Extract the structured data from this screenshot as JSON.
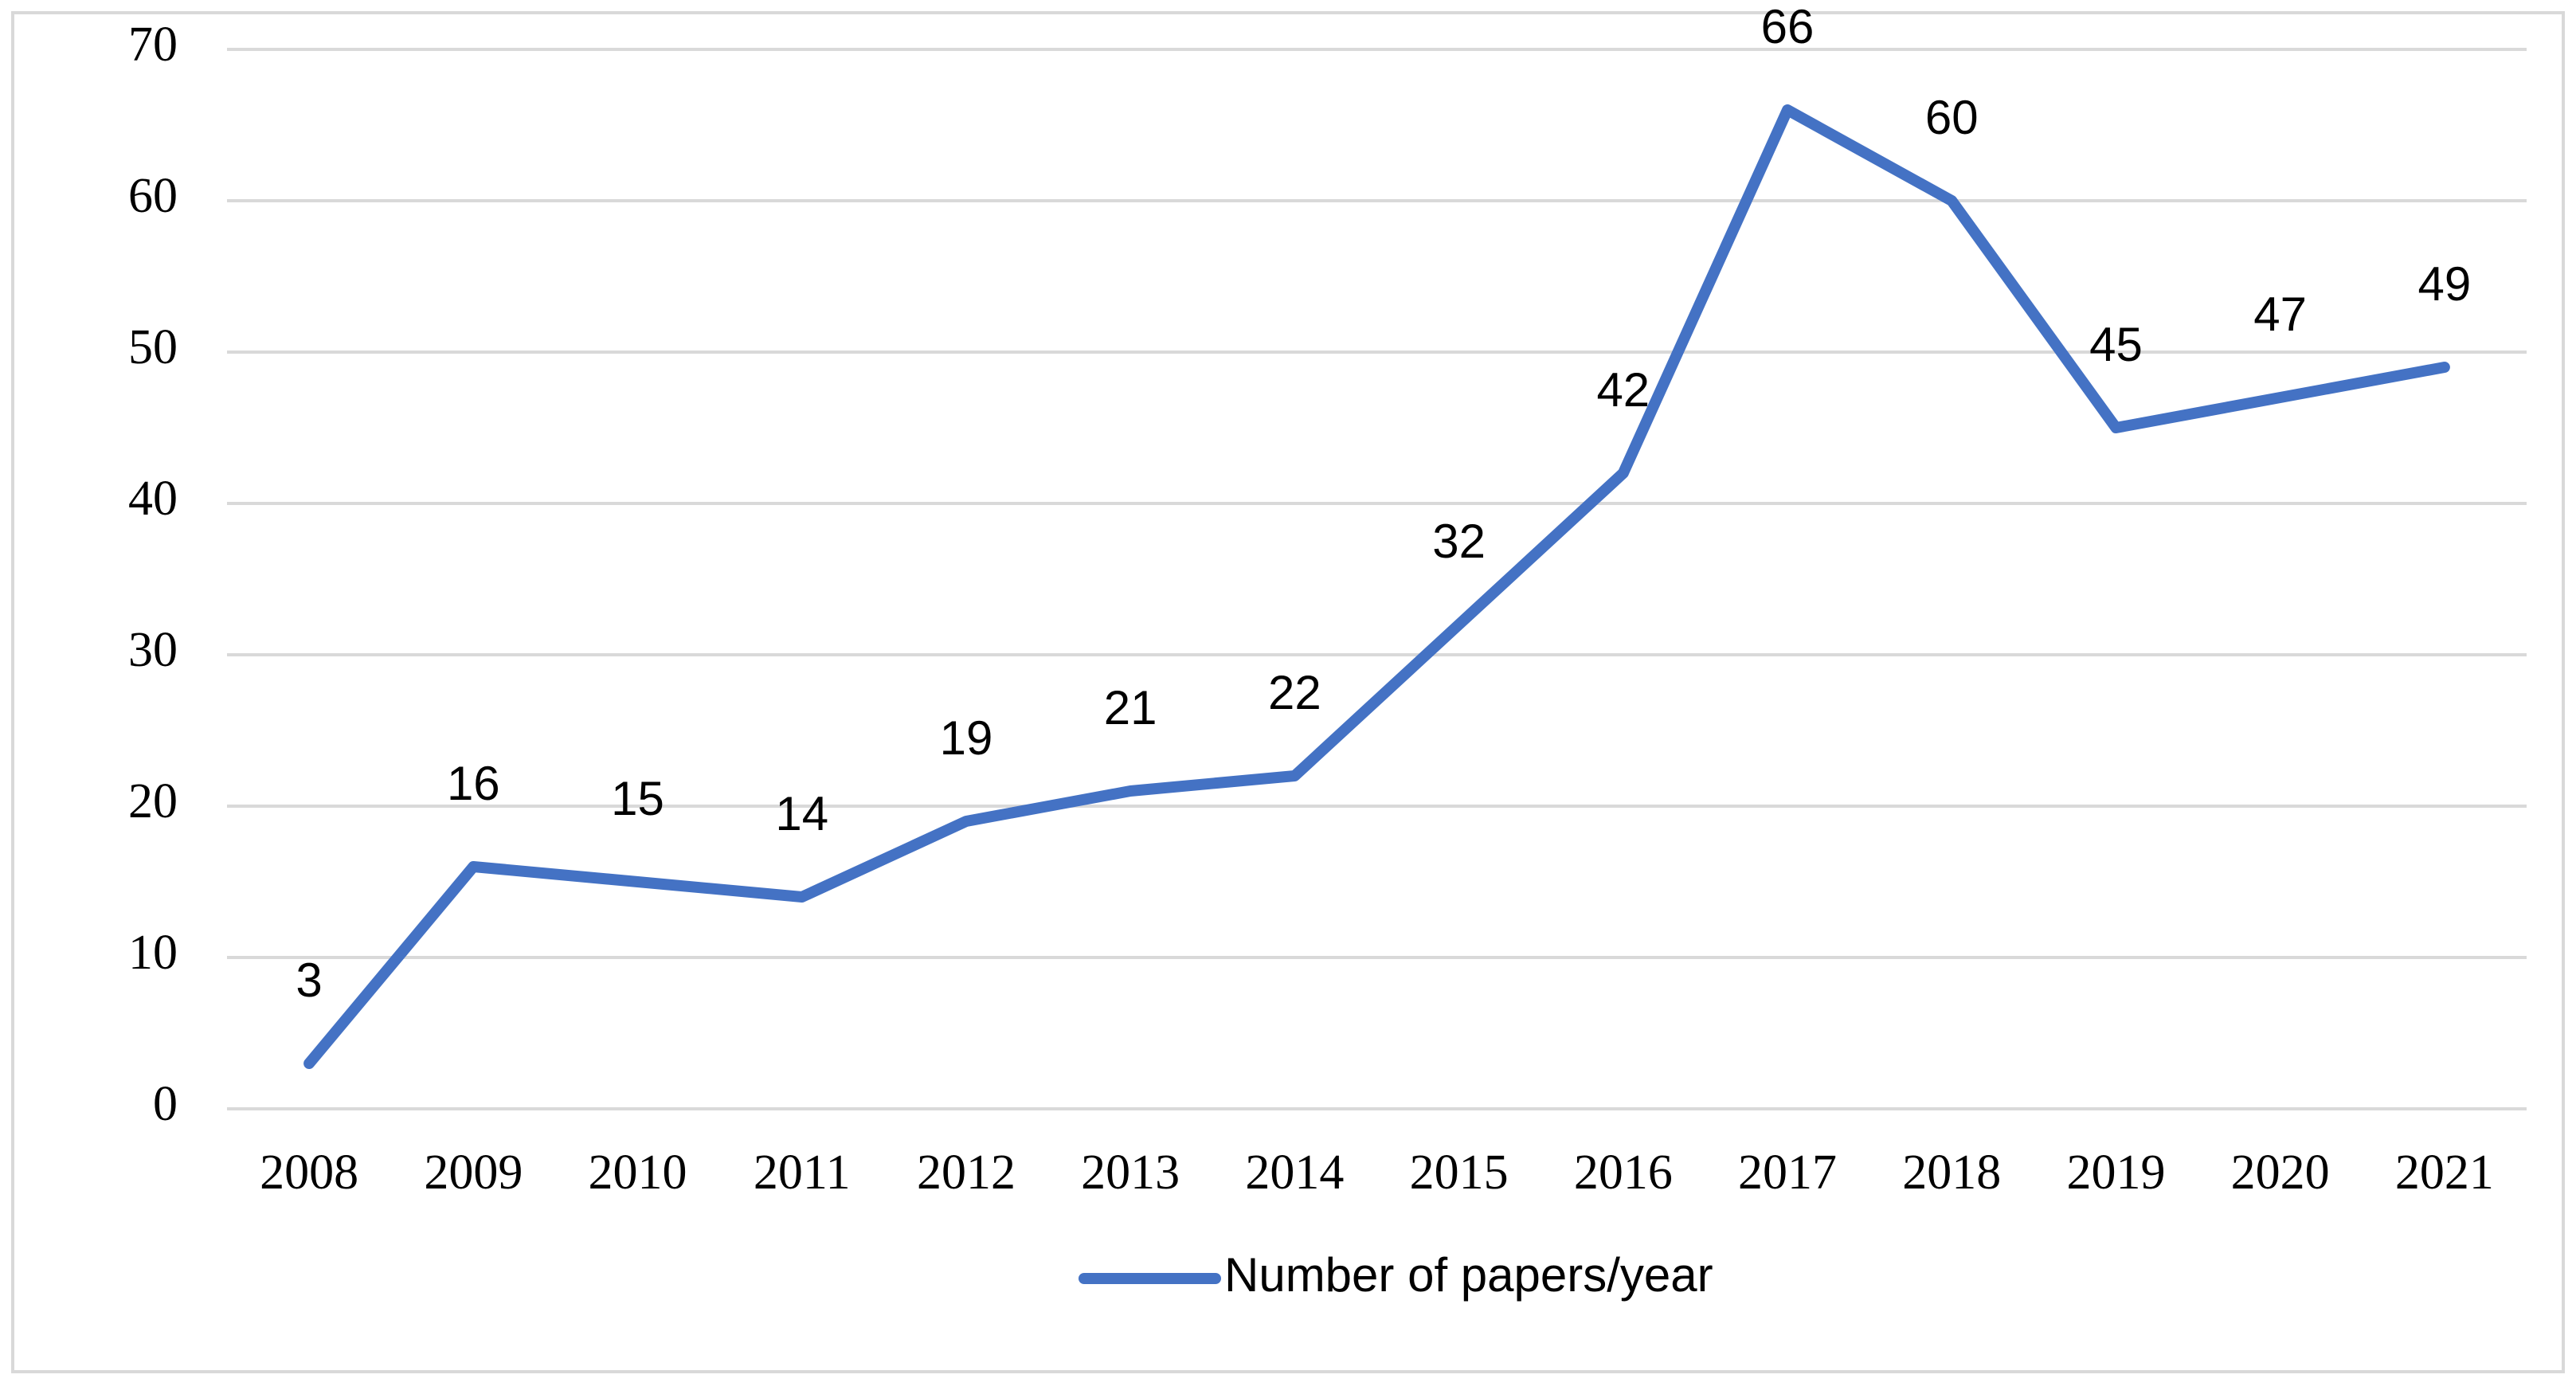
{
  "chart_data": {
    "type": "line",
    "categories": [
      "2008",
      "2009",
      "2010",
      "2011",
      "2012",
      "2013",
      "2014",
      "2015",
      "2016",
      "2017",
      "2018",
      "2019",
      "2020",
      "2021"
    ],
    "series": [
      {
        "name": "Number of papers/year",
        "color": "#4472c4",
        "values": [
          3,
          16,
          15,
          14,
          19,
          21,
          22,
          32,
          42,
          66,
          60,
          45,
          47,
          49
        ]
      }
    ],
    "ylim": [
      0,
      70
    ],
    "yticks": [
      0,
      10,
      20,
      30,
      40,
      50,
      60,
      70
    ],
    "grid": true,
    "legend": "bottom",
    "data_labels": true
  }
}
